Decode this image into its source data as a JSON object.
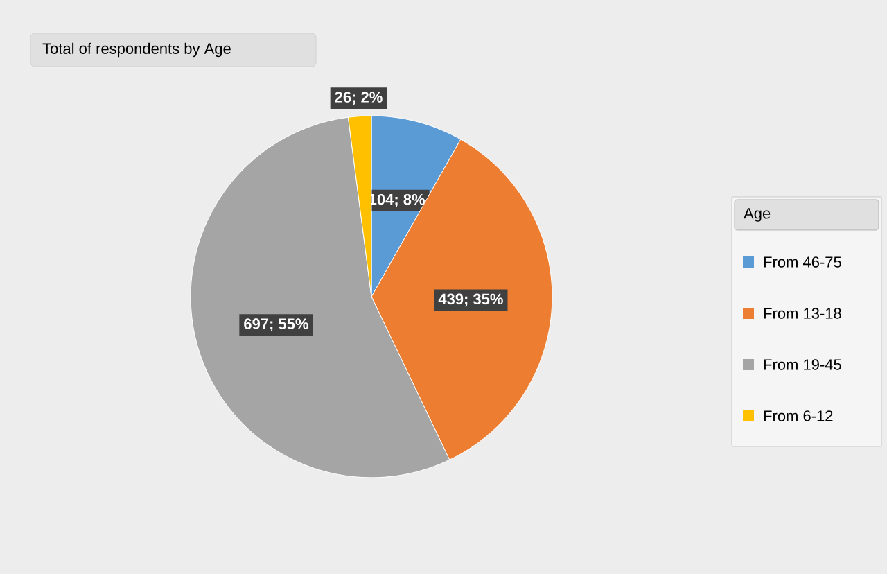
{
  "chart_data": {
    "type": "pie",
    "title": "Total of respondents by Age",
    "legend_title": "Age",
    "categories": [
      "From 46-75",
      "From  13-18",
      "From 19-45",
      "From 6-12"
    ],
    "values": [
      104,
      439,
      697,
      26
    ],
    "value_labels": [
      "104; 8%",
      "439; 35%",
      "697; 55%",
      "26; 2%"
    ],
    "colors": [
      "#5b9bd5",
      "#ed7d31",
      "#a5a5a5",
      "#ffc000"
    ],
    "legend": "right"
  }
}
